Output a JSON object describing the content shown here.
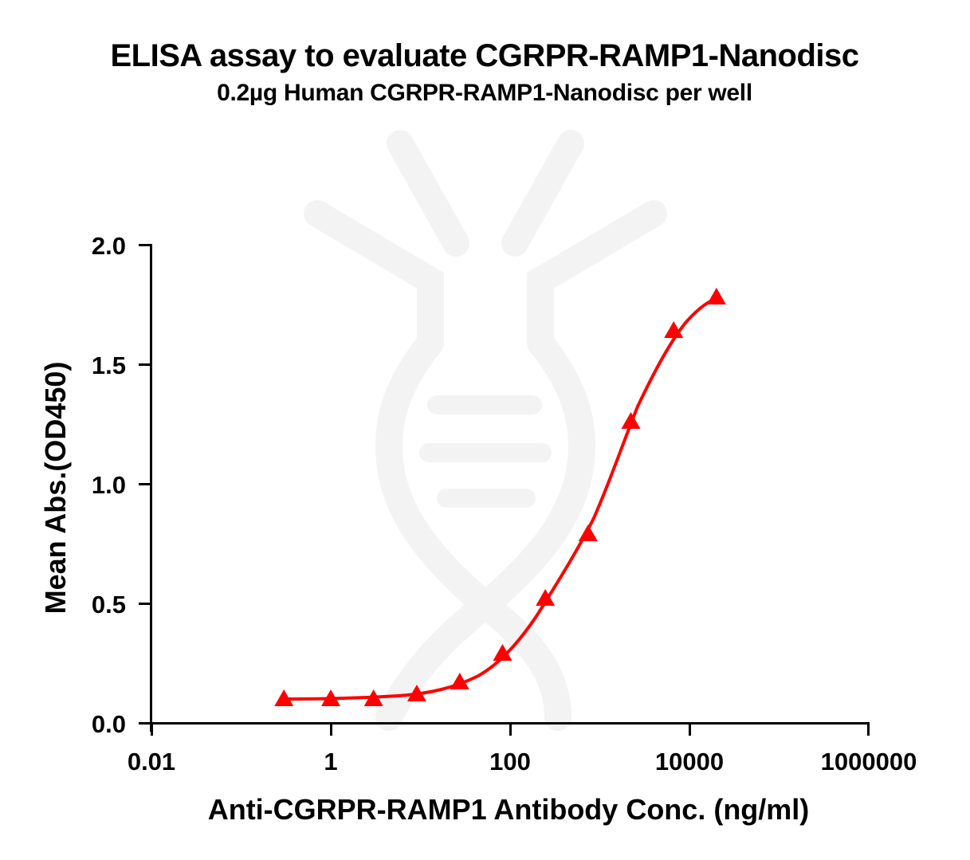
{
  "chart_data": {
    "type": "line",
    "title": "ELISA assay to evaluate CGRPR-RAMP1-Nanodisc",
    "subtitle": "0.2µg Human CGRPR-RAMP1-Nanodisc per well",
    "xlabel": "Anti-CGRPR-RAMP1 Antibody Conc. (ng/ml)",
    "ylabel": "Mean Abs.(OD450)",
    "xscale": "log",
    "xlim": [
      0.01,
      1000000
    ],
    "ylim": [
      0,
      2.0
    ],
    "x_ticks": [
      "0.01",
      "1",
      "100",
      "10000",
      "1000000"
    ],
    "y_ticks": [
      "0.0",
      "0.5",
      "1.0",
      "1.5",
      "2.0"
    ],
    "grid": false,
    "legend": null,
    "series": [
      {
        "name": "CGRPR-RAMP1-Nanodisc",
        "color": "#ff0000",
        "marker": "triangle",
        "fit": "4PL sigmoid",
        "x": [
          0.3,
          1.0,
          3.0,
          9.1,
          27.4,
          82.3,
          247,
          741,
          2222,
          6667,
          20000
        ],
        "y": [
          0.1,
          0.1,
          0.1,
          0.12,
          0.17,
          0.29,
          0.52,
          0.79,
          1.26,
          1.64,
          1.78
        ]
      }
    ]
  },
  "watermark": {
    "icon": "dna-flask-logo",
    "color": "#f3f3f3"
  }
}
